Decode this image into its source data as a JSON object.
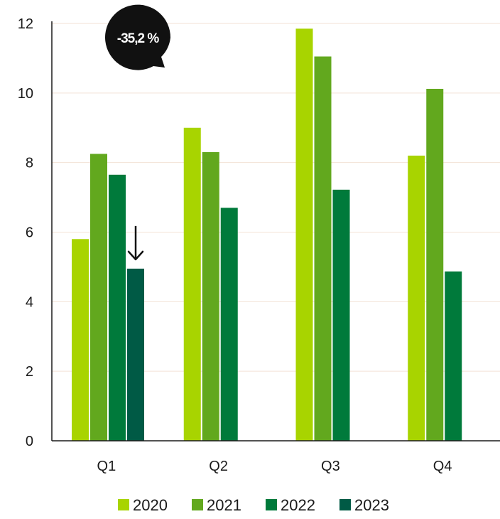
{
  "chart_data": {
    "type": "bar",
    "categories": [
      "Q1",
      "Q2",
      "Q3",
      "Q4"
    ],
    "series": [
      {
        "name": "2020",
        "color": "#a8d400",
        "values": [
          5.8,
          9.0,
          11.85,
          8.2
        ]
      },
      {
        "name": "2021",
        "color": "#62a81e",
        "values": [
          8.25,
          8.3,
          11.05,
          10.12
        ]
      },
      {
        "name": "2022",
        "color": "#007a3b",
        "values": [
          7.65,
          6.7,
          7.22,
          4.87
        ]
      },
      {
        "name": "2023",
        "color": "#005a45",
        "values": [
          4.95,
          null,
          null,
          null
        ]
      }
    ],
    "ylim": [
      0,
      12
    ],
    "yticks": [
      0,
      2,
      4,
      6,
      8,
      10,
      12
    ],
    "grid": true,
    "legend_position": "bottom",
    "annotation": {
      "text": "-35,2 %",
      "category": "Q1",
      "series": "2023",
      "arrow": "down"
    }
  }
}
